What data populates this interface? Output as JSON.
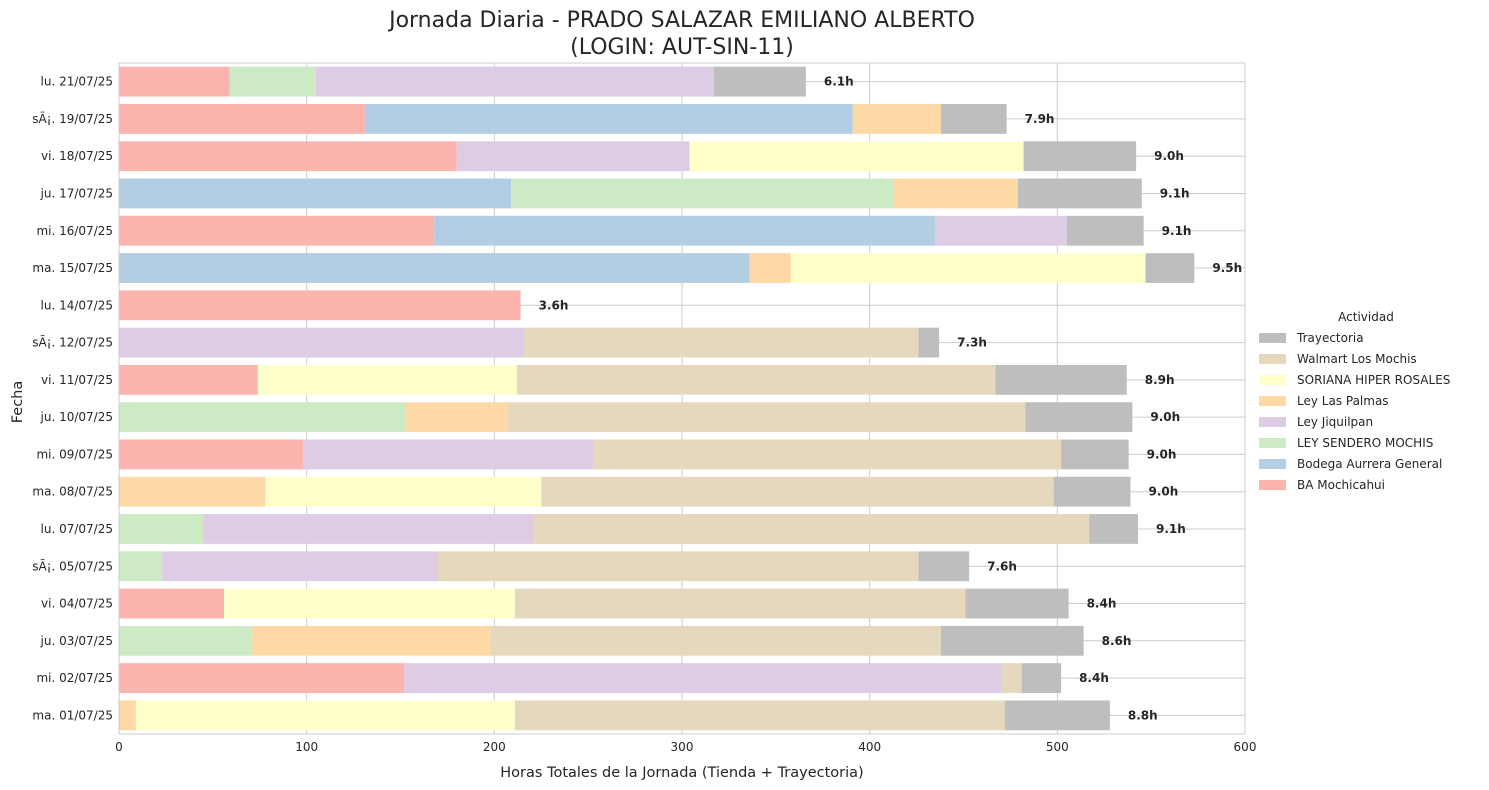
{
  "chart_data": {
    "type": "bar",
    "orientation": "horizontal",
    "stacked": true,
    "title_line1": "Jornada Diaria - PRADO SALAZAR EMILIANO ALBERTO",
    "title_line2": "(LOGIN: AUT-SIN-11)",
    "xlabel": "Horas Totales de la Jornada (Tienda + Trayectoria)",
    "ylabel": "Fecha",
    "xlim": [
      0,
      600
    ],
    "xticks": [
      0,
      100,
      200,
      300,
      400,
      500,
      600
    ],
    "grid": true,
    "legend": {
      "title": "Actividad",
      "placement": "right"
    },
    "categories": [
      "lu. 21/07/25",
      "sÃ¡. 19/07/25",
      "vi. 18/07/25",
      "ju. 17/07/25",
      "mi. 16/07/25",
      "ma. 15/07/25",
      "lu. 14/07/25",
      "sÃ¡. 12/07/25",
      "vi. 11/07/25",
      "ju. 10/07/25",
      "mi. 09/07/25",
      "ma. 08/07/25",
      "lu. 07/07/25",
      "sÃ¡. 05/07/25",
      "vi. 04/07/25",
      "ju. 03/07/25",
      "mi. 02/07/25",
      "ma. 01/07/25"
    ],
    "totals_labels": [
      "6.1h",
      "7.9h",
      "9.0h",
      "9.1h",
      "9.1h",
      "9.5h",
      "3.6h",
      "7.3h",
      "8.9h",
      "9.0h",
      "9.0h",
      "9.0h",
      "9.1h",
      "7.6h",
      "8.4h",
      "8.6h",
      "8.4h",
      "8.8h"
    ],
    "stack_order": [
      "BA Mochicahui",
      "Bodega Aurrera General",
      "LEY SENDERO MOCHIS",
      "Ley Jiquilpan",
      "Ley Las Palmas",
      "SORIANA HIPER ROSALES",
      "Walmart Los Mochis",
      "Trayectoria"
    ],
    "legend_order": [
      "Trayectoria",
      "Walmart Los Mochis",
      "SORIANA HIPER ROSALES",
      "Ley Las Palmas",
      "Ley Jiquilpan",
      "LEY SENDERO MOCHIS",
      "Bodega Aurrera General",
      "BA Mochicahui"
    ],
    "colors": {
      "BA Mochicahui": "#fbb4ae",
      "Bodega Aurrera General": "#b3cde3",
      "LEY SENDERO MOCHIS": "#ccebc5",
      "Ley Jiquilpan": "#decbe4",
      "Ley Las Palmas": "#fed9a6",
      "SORIANA HIPER ROSALES": "#ffffcc",
      "Walmart Los Mochis": "#e5d8bd",
      "Trayectoria": "#bebebe"
    },
    "series": [
      {
        "name": "BA Mochicahui",
        "values": [
          59,
          131,
          180,
          0,
          168,
          0,
          214,
          0,
          74,
          0,
          98,
          0,
          0,
          0,
          56,
          0,
          152,
          0
        ]
      },
      {
        "name": "Bodega Aurrera General",
        "values": [
          0,
          260,
          0,
          209,
          267,
          336,
          0,
          0,
          0,
          0,
          0,
          0,
          0,
          0,
          0,
          0,
          0,
          0
        ]
      },
      {
        "name": "LEY SENDERO MOCHIS",
        "values": [
          46,
          0,
          0,
          204,
          0,
          0,
          0,
          0,
          0,
          153,
          0,
          0,
          45,
          23,
          0,
          71,
          0,
          0
        ]
      },
      {
        "name": "Ley Jiquilpan",
        "values": [
          212,
          0,
          124,
          0,
          70,
          0,
          0,
          216,
          0,
          0,
          155,
          0,
          176,
          147,
          0,
          0,
          318,
          0
        ]
      },
      {
        "name": "Ley Las Palmas",
        "values": [
          0,
          47,
          0,
          66,
          0,
          22,
          0,
          0,
          0,
          54,
          0,
          78,
          0,
          0,
          0,
          127,
          0,
          9
        ]
      },
      {
        "name": "SORIANA HIPER ROSALES",
        "values": [
          0,
          0,
          178,
          0,
          0,
          189,
          0,
          0,
          138,
          0,
          0,
          147,
          0,
          0,
          155,
          0,
          0,
          202
        ]
      },
      {
        "name": "Walmart Los Mochis",
        "values": [
          0,
          0,
          0,
          0,
          0,
          0,
          0,
          210,
          255,
          276,
          249,
          273,
          296,
          256,
          240,
          240,
          11,
          261
        ]
      },
      {
        "name": "Trayectoria",
        "values": [
          49,
          35,
          60,
          66,
          41,
          26,
          0,
          11,
          70,
          57,
          36,
          41,
          26,
          27,
          55,
          76,
          21,
          56
        ]
      }
    ]
  }
}
